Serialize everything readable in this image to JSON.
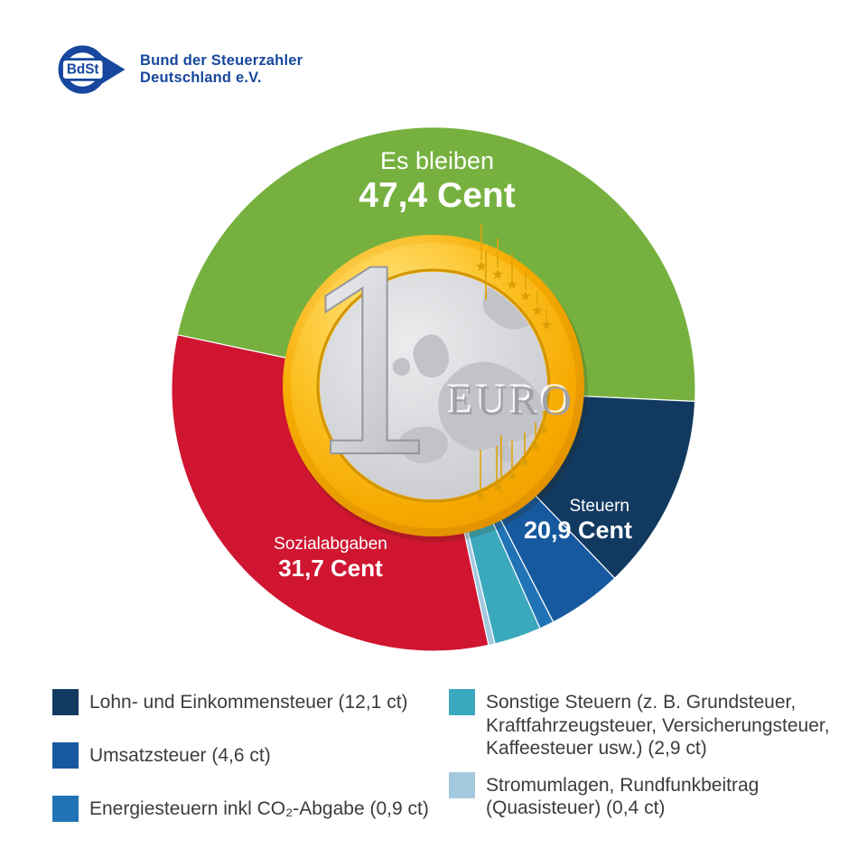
{
  "logo": {
    "abbr": "BdSt",
    "line1": "Bund der Steuerzahler",
    "line2": "Deutschland e.V.",
    "color": "#17479E"
  },
  "chart_data": {
    "type": "pie",
    "unit": "Cent von 1 Euro",
    "start_angle_deg": 282,
    "center_coin": {
      "denomination": "1",
      "currency": "EURO"
    },
    "segments": [
      {
        "label": "Es bleiben",
        "value": 47.4,
        "color": "#76B13F"
      },
      {
        "label": "Lohn- und Einkommensteuer",
        "value": 12.1,
        "color": "#123A61"
      },
      {
        "label": "Umsatzsteuer",
        "value": 4.6,
        "color": "#17599F"
      },
      {
        "label": "Energiesteuern inkl CO₂-Abgabe",
        "value": 0.9,
        "color": "#2173B7"
      },
      {
        "label": "Sonstige Steuern",
        "value": 2.9,
        "color": "#3AA9BE"
      },
      {
        "label": "Stromumlagen, Rundfunkbeitrag (Quasisteuer)",
        "value": 0.4,
        "color": "#A3C9DE"
      },
      {
        "label": "Sozialabgaben",
        "value": 31.7,
        "color": "#D01531"
      }
    ],
    "annotations": [
      {
        "label": "Es bleiben",
        "value": "47,4 Cent"
      },
      {
        "label": "Sozialabgaben",
        "value": "31,7 Cent"
      },
      {
        "label": "Steuern",
        "value": "20,9 Cent"
      }
    ]
  },
  "legend": {
    "left": [
      {
        "color": "#123A61",
        "label": "Lohn- und Einkommensteuer (12,1 ct)"
      },
      {
        "color": "#17599F",
        "label": "Umsatzsteuer (4,6 ct)"
      },
      {
        "color": "#2173B7",
        "label": "Energiesteuern inkl CO₂-Abgabe (0,9 ct)"
      }
    ],
    "right": [
      {
        "color": "#3AA9BE",
        "label": "Sonstige Steuern (z. B. Grundsteuer, Kraftfahrzeugsteuer, Versicherungsteuer, Kaffeesteuer usw.) (2,9 ct)"
      },
      {
        "color": "#A3C9DE",
        "label": "Stromumlagen, Rundfunkbeitrag (Quasisteuer) (0,4 ct)"
      }
    ]
  }
}
